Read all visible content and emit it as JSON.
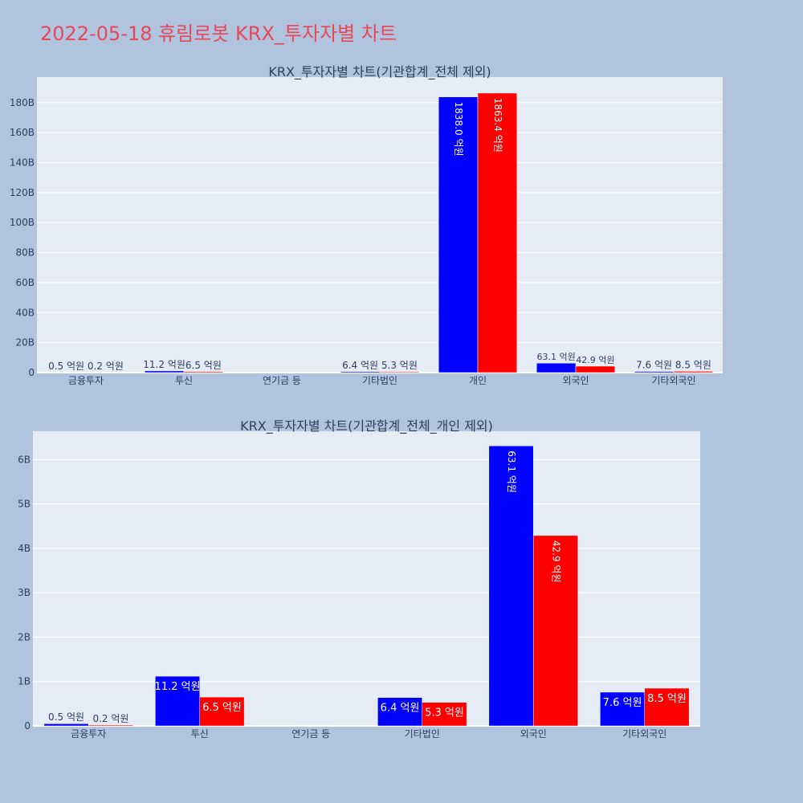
{
  "page": {
    "title": "2022-05-18 휴림로봇 KRX_투자자별 차트"
  },
  "colors": {
    "buy": "#0000ff",
    "sell": "#ff0000",
    "plot_bg": "#e5ecf6",
    "page_bg": "#b0c4de",
    "grid": "#ffffff",
    "text": "#2a3f5f"
  },
  "chart_data": [
    {
      "type": "bar",
      "title": "KRX_투자자별 차트(기관합계_전체 제외)",
      "categories": [
        "금융투자",
        "투신",
        "연기금 등",
        "기타법인",
        "개인",
        "외국인",
        "기타외국인"
      ],
      "ylim": [
        0,
        197
      ],
      "yticks": [
        0,
        20,
        40,
        60,
        80,
        100,
        120,
        140,
        160,
        180
      ],
      "ytick_labels": [
        "0",
        "20B",
        "40B",
        "60B",
        "80B",
        "100B",
        "120B",
        "140B",
        "160B",
        "180B"
      ],
      "series": [
        {
          "values": [
            0.05,
            1.12,
            null,
            0.64,
            183.8,
            6.31,
            0.76
          ],
          "labels": [
            "0.5 억원",
            "11.2 억원",
            "",
            "6.4 억원",
            "1838.0 억원",
            "63.1 억원",
            "7.6 억원"
          ]
        },
        {
          "values": [
            0.02,
            0.65,
            null,
            0.53,
            186.34,
            4.29,
            0.85
          ],
          "labels": [
            "0.2 억원",
            "6.5 억원",
            "",
            "5.3 억원",
            "1863.4 억원",
            "42.9 억원",
            "8.5 억원"
          ]
        }
      ],
      "grid": true
    },
    {
      "type": "bar",
      "title": "KRX_투자자별 차트(기관합계_전체_개인 제외)",
      "categories": [
        "금융투자",
        "투신",
        "연기금 등",
        "기타법인",
        "외국인",
        "기타외국인"
      ],
      "ylim": [
        0,
        6.64
      ],
      "yticks": [
        0,
        1,
        2,
        3,
        4,
        5,
        6
      ],
      "ytick_labels": [
        "0",
        "1B",
        "2B",
        "3B",
        "4B",
        "5B",
        "6B"
      ],
      "series": [
        {
          "values": [
            0.05,
            1.12,
            null,
            0.64,
            6.31,
            0.76
          ],
          "labels": [
            "0.5 억원",
            "11.2 억원",
            "",
            "6.4 억원",
            "63.1 억원",
            "7.6 억원"
          ]
        },
        {
          "values": [
            0.02,
            0.65,
            null,
            0.53,
            4.29,
            0.85
          ],
          "labels": [
            "0.2 억원",
            "6.5 억원",
            "",
            "5.3 억원",
            "42.9 억원",
            "8.5 억원"
          ]
        }
      ],
      "grid": true
    }
  ]
}
